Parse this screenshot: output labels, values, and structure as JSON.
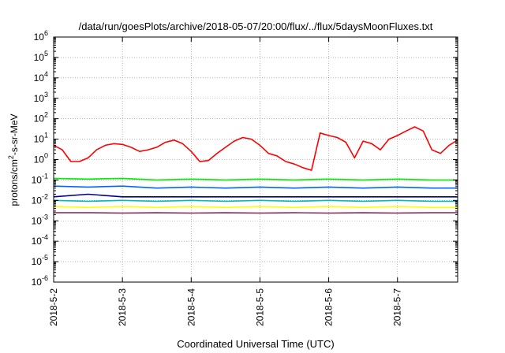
{
  "chart_data": {
    "type": "line",
    "title": "/data/run/goesPlots/archive/2018-05-07/20:00/flux/../flux/5daysMoonFluxes.txt",
    "xlabel": "Coordinated Universal Time (UTC)",
    "ylabel": {
      "base": "protons/cm",
      "sup": "2",
      "rest": "-s-sr-MeV"
    },
    "yscale": "log",
    "ylim": [
      1e-06,
      1000000.0
    ],
    "xlim": [
      "2018-05-02 00:00",
      "2018-05-07 21:00"
    ],
    "x_ticks": [
      "2018-5-2",
      "2018-5-3",
      "2018-5-4",
      "2018-5-5",
      "2018-5-6",
      "2018-5-7"
    ],
    "y_ticks": [
      {
        "exp": "-6"
      },
      {
        "exp": "-5"
      },
      {
        "exp": "-4"
      },
      {
        "exp": "-3"
      },
      {
        "exp": "-2"
      },
      {
        "exp": "-1"
      },
      {
        "exp": "0"
      },
      {
        "exp": "1"
      },
      {
        "exp": "2"
      },
      {
        "exp": "3"
      },
      {
        "exp": "4"
      },
      {
        "exp": "5"
      },
      {
        "exp": "6"
      }
    ],
    "grid": true,
    "series": [
      {
        "color": "#ff0000",
        "x": [
          "2018-05-02 00:00",
          "2018-05-02 03:00",
          "2018-05-02 06:00",
          "2018-05-02 09:00",
          "2018-05-02 12:00",
          "2018-05-02 15:00",
          "2018-05-02 18:00",
          "2018-05-02 21:00",
          "2018-05-03 00:00",
          "2018-05-03 03:00",
          "2018-05-03 06:00",
          "2018-05-03 09:00",
          "2018-05-03 12:00",
          "2018-05-03 15:00",
          "2018-05-03 18:00",
          "2018-05-03 21:00",
          "2018-05-04 00:00",
          "2018-05-04 03:00",
          "2018-05-04 06:00",
          "2018-05-04 09:00",
          "2018-05-04 12:00",
          "2018-05-04 15:00",
          "2018-05-04 18:00",
          "2018-05-04 21:00",
          "2018-05-05 00:00",
          "2018-05-05 03:00",
          "2018-05-05 06:00",
          "2018-05-05 09:00",
          "2018-05-05 12:00",
          "2018-05-05 15:00",
          "2018-05-05 18:00",
          "2018-05-05 21:00",
          "2018-05-06 00:00",
          "2018-05-06 03:00",
          "2018-05-06 06:00",
          "2018-05-06 09:00",
          "2018-05-06 12:00",
          "2018-05-06 15:00",
          "2018-05-06 18:00",
          "2018-05-06 21:00",
          "2018-05-07 00:00",
          "2018-05-07 03:00",
          "2018-05-07 06:00",
          "2018-05-07 09:00",
          "2018-05-07 12:00",
          "2018-05-07 15:00",
          "2018-05-07 18:00",
          "2018-05-07 21:00"
        ],
        "y": [
          5,
          3,
          0.8,
          0.8,
          1.2,
          3,
          5,
          6,
          5.5,
          4,
          2.5,
          3,
          4,
          7,
          9,
          6,
          2.5,
          0.8,
          0.9,
          2,
          4,
          8,
          12,
          10,
          5,
          2,
          1.5,
          0.8,
          0.6,
          0.4,
          0.3,
          20,
          15,
          12,
          7,
          1.2,
          8,
          6,
          3,
          10,
          15,
          25,
          40,
          25,
          3,
          2,
          5,
          9
        ]
      },
      {
        "color": "#00ee00",
        "x": [
          "2018-05-02 00:00",
          "2018-05-02 12:00",
          "2018-05-03 00:00",
          "2018-05-03 12:00",
          "2018-05-04 00:00",
          "2018-05-04 12:00",
          "2018-05-05 00:00",
          "2018-05-05 12:00",
          "2018-05-06 00:00",
          "2018-05-06 12:00",
          "2018-05-07 00:00",
          "2018-05-07 12:00",
          "2018-05-07 21:00"
        ],
        "y": [
          0.12,
          0.11,
          0.12,
          0.1,
          0.11,
          0.1,
          0.11,
          0.1,
          0.11,
          0.1,
          0.11,
          0.1,
          0.1
        ]
      },
      {
        "color": "#0066ff",
        "x": [
          "2018-05-02 00:00",
          "2018-05-02 12:00",
          "2018-05-03 00:00",
          "2018-05-03 12:00",
          "2018-05-04 00:00",
          "2018-05-04 12:00",
          "2018-05-05 00:00",
          "2018-05-05 12:00",
          "2018-05-06 00:00",
          "2018-05-06 12:00",
          "2018-05-07 00:00",
          "2018-05-07 12:00",
          "2018-05-07 21:00"
        ],
        "y": [
          0.05,
          0.045,
          0.05,
          0.04,
          0.045,
          0.04,
          0.045,
          0.04,
          0.045,
          0.04,
          0.045,
          0.04,
          0.04
        ]
      },
      {
        "color": "#000099",
        "x": [
          "2018-05-02 00:00",
          "2018-05-02 12:00",
          "2018-05-03 00:00",
          "2018-05-03 12:00",
          "2018-05-04 00:00",
          "2018-05-04 12:00",
          "2018-05-05 00:00",
          "2018-05-05 12:00",
          "2018-05-06 00:00",
          "2018-05-06 12:00",
          "2018-05-07 00:00",
          "2018-05-07 12:00",
          "2018-05-07 21:00"
        ],
        "y": [
          0.015,
          0.02,
          0.015,
          0.015,
          0.015,
          0.015,
          0.015,
          0.015,
          0.015,
          0.015,
          0.015,
          0.015,
          0.015
        ]
      },
      {
        "color": "#00bbbb",
        "x": [
          "2018-05-02 00:00",
          "2018-05-02 12:00",
          "2018-05-03 00:00",
          "2018-05-03 12:00",
          "2018-05-04 00:00",
          "2018-05-04 12:00",
          "2018-05-05 00:00",
          "2018-05-05 12:00",
          "2018-05-06 00:00",
          "2018-05-06 12:00",
          "2018-05-07 00:00",
          "2018-05-07 12:00",
          "2018-05-07 21:00"
        ],
        "y": [
          0.01,
          0.009,
          0.01,
          0.009,
          0.01,
          0.009,
          0.01,
          0.009,
          0.01,
          0.009,
          0.01,
          0.009,
          0.009
        ]
      },
      {
        "color": "#ffff00",
        "x": [
          "2018-05-02 00:00",
          "2018-05-02 12:00",
          "2018-05-03 00:00",
          "2018-05-03 12:00",
          "2018-05-04 00:00",
          "2018-05-04 12:00",
          "2018-05-05 00:00",
          "2018-05-05 12:00",
          "2018-05-06 00:00",
          "2018-05-06 12:00",
          "2018-05-07 00:00",
          "2018-05-07 12:00",
          "2018-05-07 21:00"
        ],
        "y": [
          0.005,
          0.0045,
          0.005,
          0.0045,
          0.005,
          0.0045,
          0.005,
          0.0045,
          0.005,
          0.0045,
          0.005,
          0.0045,
          0.0045
        ]
      },
      {
        "color": "#993366",
        "x": [
          "2018-05-02 00:00",
          "2018-05-02 12:00",
          "2018-05-03 00:00",
          "2018-05-03 12:00",
          "2018-05-04 00:00",
          "2018-05-04 12:00",
          "2018-05-05 00:00",
          "2018-05-05 12:00",
          "2018-05-06 00:00",
          "2018-05-06 12:00",
          "2018-05-07 00:00",
          "2018-05-07 12:00",
          "2018-05-07 21:00"
        ],
        "y": [
          0.0025,
          0.0025,
          0.0024,
          0.0025,
          0.0024,
          0.0025,
          0.0024,
          0.0025,
          0.0024,
          0.0025,
          0.0024,
          0.0025,
          0.0025
        ]
      }
    ]
  }
}
